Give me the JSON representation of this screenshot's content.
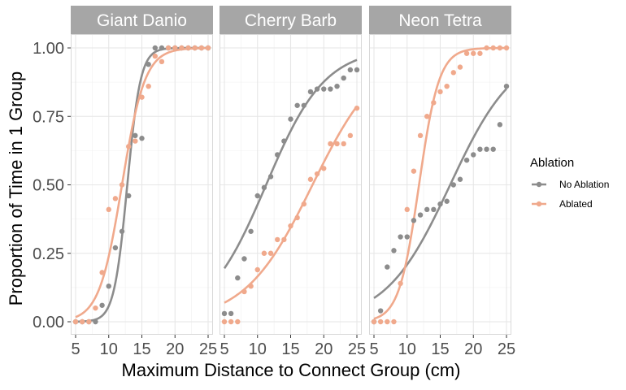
{
  "chart_data": {
    "type": "scatter",
    "ylabel": "Proportion of Time in 1 Group",
    "xlabel": "Maximum Distance to Connect Group (cm)",
    "xlim": [
      5,
      25
    ],
    "ylim": [
      0,
      1
    ],
    "x_ticks": [
      5,
      10,
      15,
      20,
      25
    ],
    "y_ticks": [
      "0.00",
      "0.25",
      "0.50",
      "0.75",
      "1.00"
    ],
    "grid": true,
    "legend_position": "right",
    "legend": {
      "title": "Ablation",
      "entries": [
        {
          "name": "No Ablation",
          "color": "#8c8c8c"
        },
        {
          "name": "Ablated",
          "color": "#f0a98c"
        }
      ]
    },
    "colors": {
      "no_ablation": "#8c8c8c",
      "ablated": "#f0a98c",
      "strip": "#a6a6a6",
      "grid": "#e6e6e6",
      "panel_border": "#d9d9d9"
    },
    "panels": [
      {
        "title": "Giant Danio",
        "series": [
          {
            "name": "No Ablation",
            "points": [
              [
                5,
                0.0
              ],
              [
                6,
                0.0
              ],
              [
                7,
                0.0
              ],
              [
                8,
                0.0
              ],
              [
                9,
                0.06
              ],
              [
                10,
                0.13
              ],
              [
                11,
                0.27
              ],
              [
                12,
                0.33
              ],
              [
                13,
                0.46
              ],
              [
                14,
                0.68
              ],
              [
                15,
                0.67
              ],
              [
                16,
                0.94
              ],
              [
                17,
                1.0
              ],
              [
                18,
                1.0
              ],
              [
                19,
                1.0
              ],
              [
                20,
                1.0
              ],
              [
                21,
                1.0
              ],
              [
                22,
                1.0
              ],
              [
                23,
                1.0
              ],
              [
                24,
                1.0
              ],
              [
                25,
                1.0
              ]
            ],
            "fit": {
              "midpoint": 12.8,
              "slope": 1.0,
              "lower": 0,
              "upper": 1
            }
          },
          {
            "name": "Ablated",
            "points": [
              [
                5,
                0.0
              ],
              [
                6,
                0.0
              ],
              [
                7,
                0.0
              ],
              [
                8,
                0.05
              ],
              [
                9,
                0.18
              ],
              [
                10,
                0.41
              ],
              [
                11,
                0.45
              ],
              [
                12,
                0.5
              ],
              [
                13,
                0.64
              ],
              [
                14,
                0.66
              ],
              [
                15,
                0.82
              ],
              [
                16,
                0.86
              ],
              [
                17,
                0.97
              ],
              [
                18,
                0.95
              ],
              [
                19,
                1.0
              ],
              [
                20,
                1.0
              ],
              [
                21,
                1.0
              ],
              [
                22,
                1.0
              ],
              [
                23,
                1.0
              ],
              [
                24,
                1.0
              ],
              [
                25,
                1.0
              ]
            ],
            "fit": {
              "midpoint": 12.0,
              "slope": 0.58,
              "lower": 0,
              "upper": 1
            }
          }
        ]
      },
      {
        "title": "Cherry Barb",
        "series": [
          {
            "name": "No Ablation",
            "points": [
              [
                5,
                0.03
              ],
              [
                6,
                0.03
              ],
              [
                7,
                0.16
              ],
              [
                8,
                0.23
              ],
              [
                9,
                0.33
              ],
              [
                10,
                0.46
              ],
              [
                11,
                0.49
              ],
              [
                12,
                0.53
              ],
              [
                13,
                0.61
              ],
              [
                14,
                0.66
              ],
              [
                15,
                0.74
              ],
              [
                16,
                0.79
              ],
              [
                17,
                0.79
              ],
              [
                18,
                0.84
              ],
              [
                19,
                0.85
              ],
              [
                20,
                0.85
              ],
              [
                21,
                0.85
              ],
              [
                22,
                0.86
              ],
              [
                23,
                0.89
              ],
              [
                24,
                0.92
              ],
              [
                25,
                0.92
              ]
            ],
            "fit": {
              "midpoint": 11.3,
              "slope": 0.225,
              "lower": 0,
              "upper": 1
            }
          },
          {
            "name": "Ablated",
            "points": [
              [
                5,
                0.0
              ],
              [
                6,
                0.0
              ],
              [
                7,
                0.0
              ],
              [
                8,
                0.11
              ],
              [
                9,
                0.13
              ],
              [
                10,
                0.19
              ],
              [
                11,
                0.25
              ],
              [
                12,
                0.25
              ],
              [
                13,
                0.3
              ],
              [
                14,
                0.3
              ],
              [
                15,
                0.35
              ],
              [
                16,
                0.38
              ],
              [
                17,
                0.43
              ],
              [
                18,
                0.52
              ],
              [
                19,
                0.54
              ],
              [
                20,
                0.56
              ],
              [
                21,
                0.65
              ],
              [
                22,
                0.65
              ],
              [
                23,
                0.65
              ],
              [
                24,
                0.68
              ],
              [
                25,
                0.78
              ]
            ],
            "fit": {
              "midpoint": 18.3,
              "slope": 0.195,
              "lower": 0,
              "upper": 1
            }
          }
        ]
      },
      {
        "title": "Neon Tetra",
        "series": [
          {
            "name": "No Ablation",
            "points": [
              [
                5,
                0.0
              ],
              [
                6,
                0.04
              ],
              [
                7,
                0.2
              ],
              [
                8,
                0.26
              ],
              [
                9,
                0.31
              ],
              [
                10,
                0.31
              ],
              [
                11,
                0.37
              ],
              [
                12,
                0.39
              ],
              [
                13,
                0.41
              ],
              [
                14,
                0.41
              ],
              [
                15,
                0.43
              ],
              [
                16,
                0.44
              ],
              [
                17,
                0.5
              ],
              [
                18,
                0.52
              ],
              [
                19,
                0.59
              ],
              [
                20,
                0.61
              ],
              [
                21,
                0.63
              ],
              [
                22,
                0.63
              ],
              [
                23,
                0.63
              ],
              [
                24,
                0.72
              ],
              [
                25,
                0.86
              ]
            ],
            "fit": {
              "midpoint": 16.5,
              "slope": 0.205,
              "lower": 0,
              "upper": 1
            }
          },
          {
            "name": "Ablated",
            "points": [
              [
                5,
                0.0
              ],
              [
                6,
                0.0
              ],
              [
                7,
                0.0
              ],
              [
                8,
                0.0
              ],
              [
                9,
                0.14
              ],
              [
                10,
                0.41
              ],
              [
                11,
                0.55
              ],
              [
                12,
                0.68
              ],
              [
                13,
                0.75
              ],
              [
                14,
                0.8
              ],
              [
                15,
                0.84
              ],
              [
                16,
                0.86
              ],
              [
                17,
                0.91
              ],
              [
                18,
                0.93
              ],
              [
                19,
                0.98
              ],
              [
                20,
                0.98
              ],
              [
                21,
                0.98
              ],
              [
                22,
                1.0
              ],
              [
                23,
                1.0
              ],
              [
                24,
                1.0
              ],
              [
                25,
                1.0
              ]
            ],
            "fit": {
              "midpoint": 11.8,
              "slope": 0.66,
              "lower": 0,
              "upper": 1
            }
          }
        ]
      }
    ]
  }
}
